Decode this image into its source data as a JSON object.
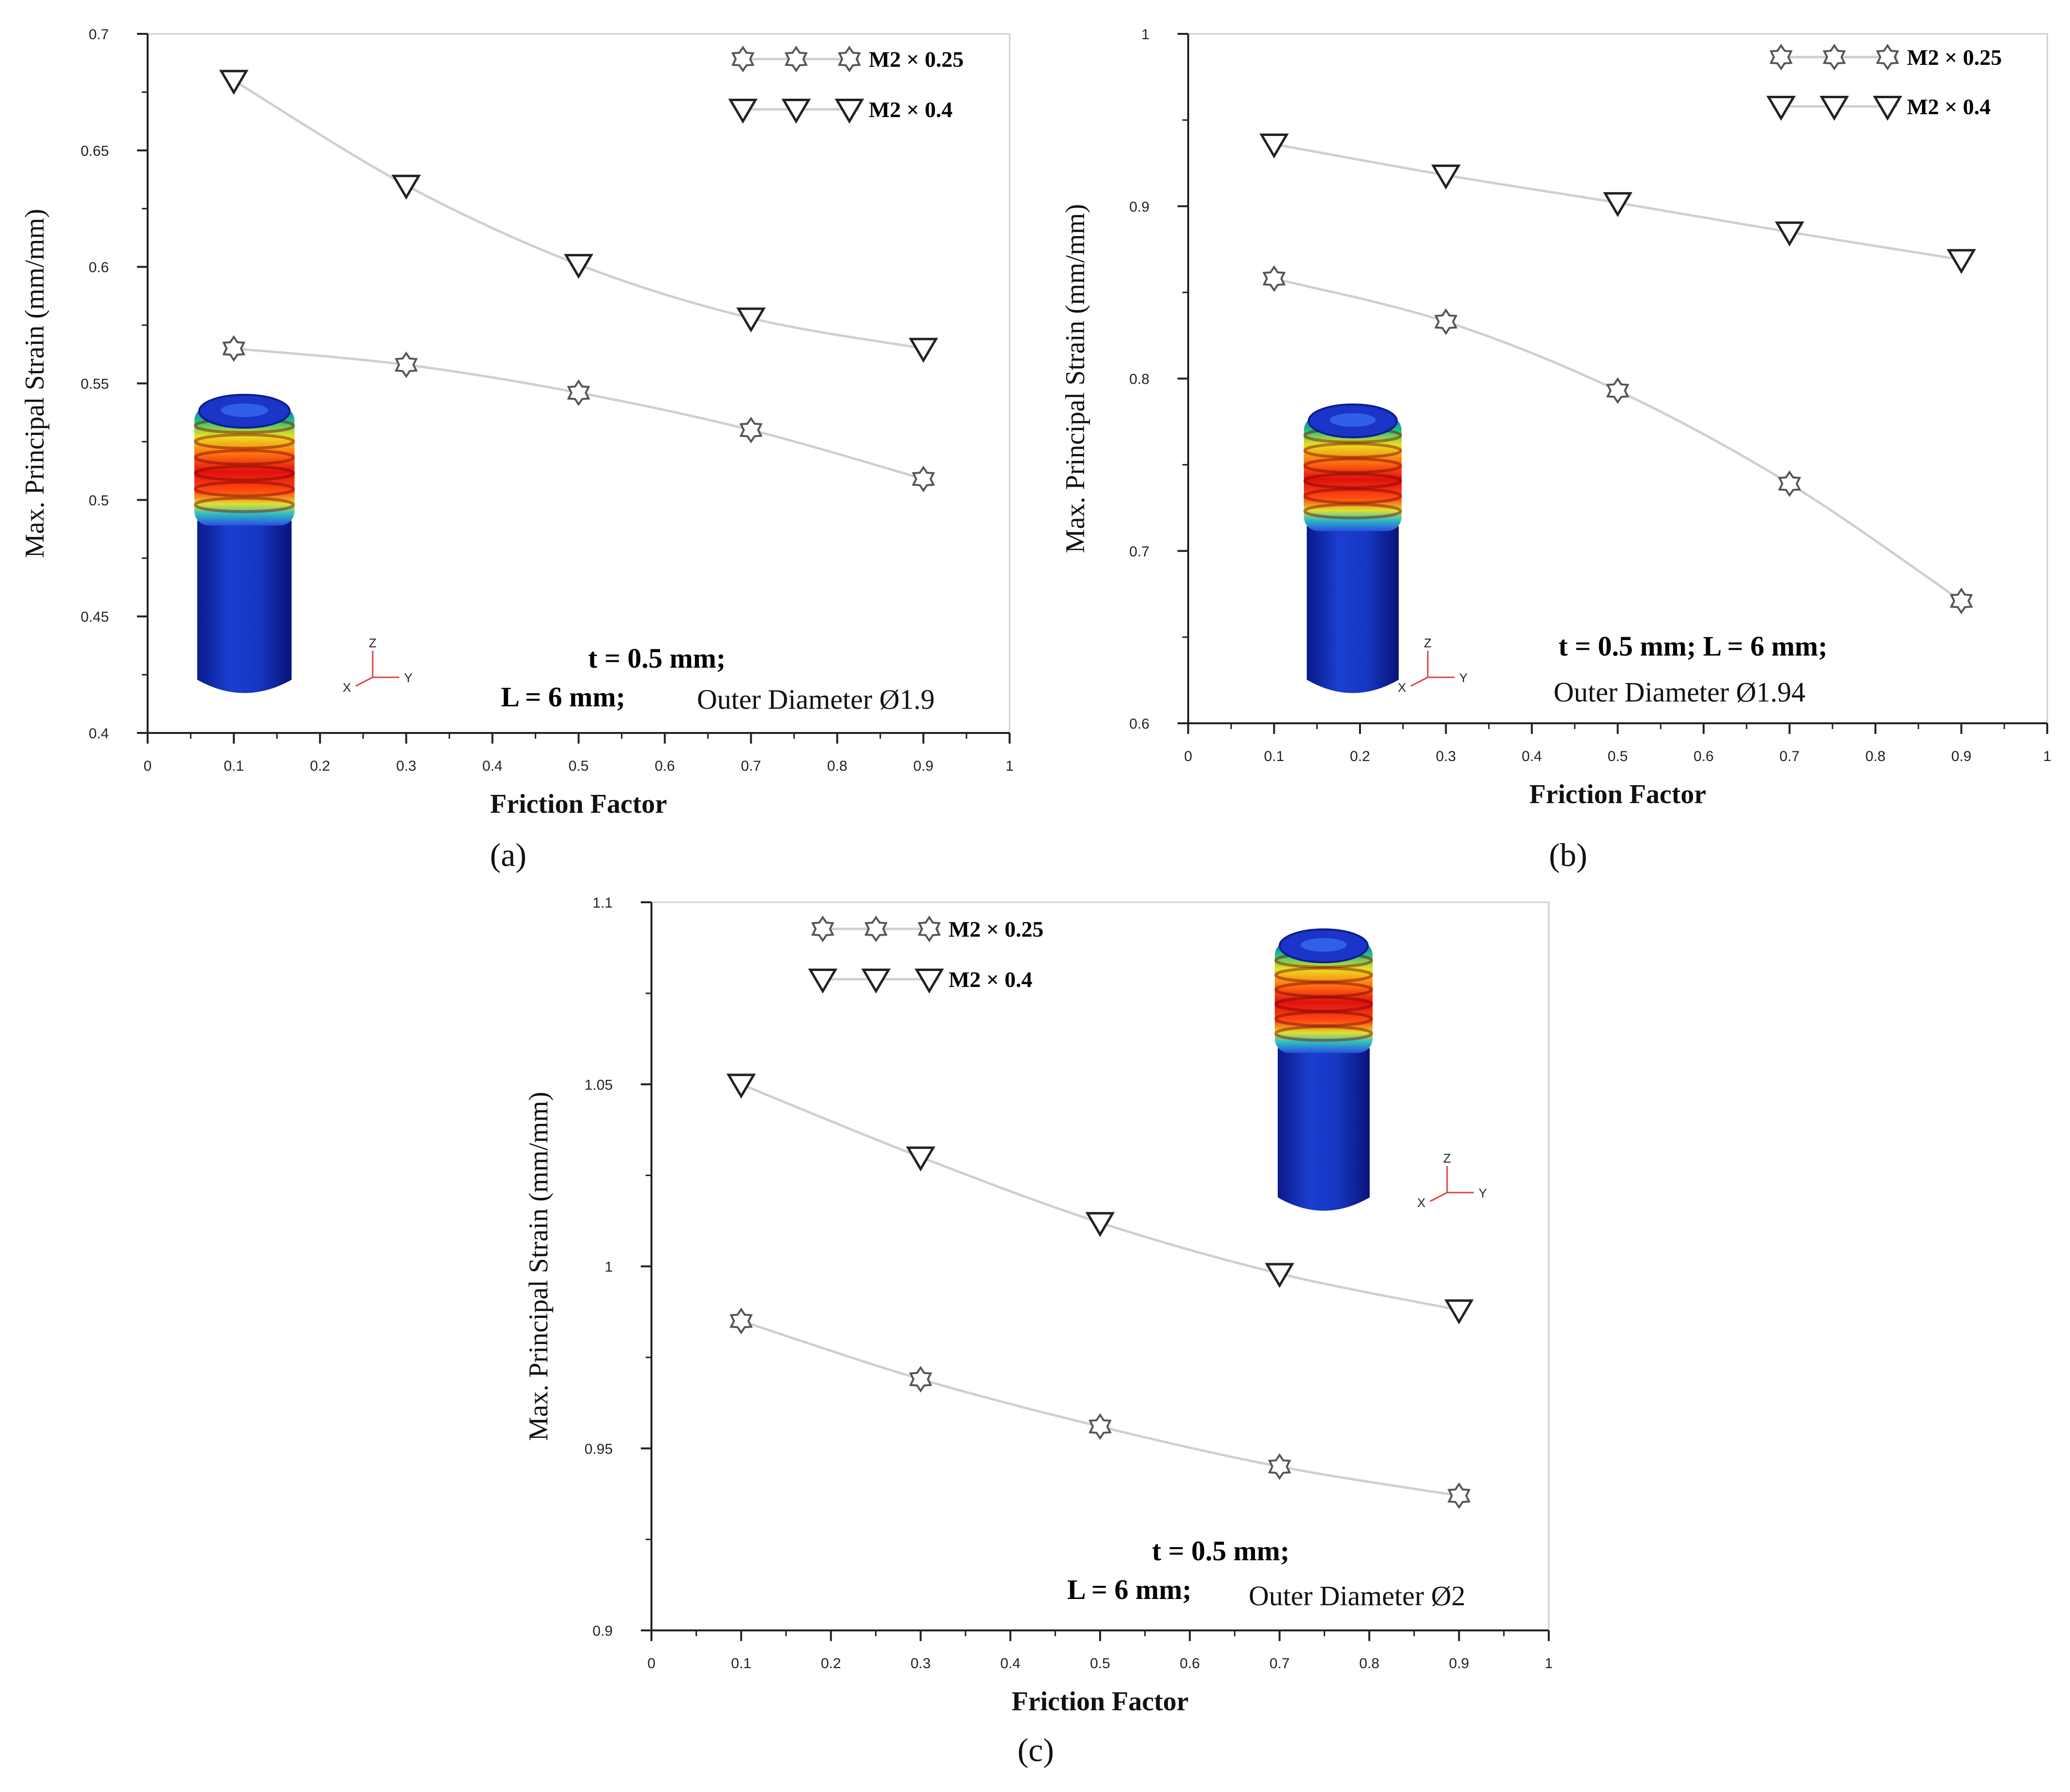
{
  "chart_data": [
    {
      "type": "line",
      "panel_label": "(a)",
      "xlabel": "Friction Factor",
      "ylabel": "Max. Principal Strain (mm/mm)",
      "xlim": [
        0,
        1
      ],
      "ylim": [
        0.4,
        0.7
      ],
      "xticks": [
        "0",
        "0.1",
        "0.2",
        "0.3",
        "0.4",
        "0.5",
        "0.6",
        "0.7",
        "0.8",
        "0.9",
        "1"
      ],
      "yticks": [
        "0.4",
        "0.45",
        "0.5",
        "0.55",
        "0.6",
        "0.65",
        "0.7"
      ],
      "x": [
        0.1,
        0.3,
        0.5,
        0.7,
        0.9
      ],
      "series": [
        {
          "name": "M2 × 0.25",
          "marker": "star",
          "values": [
            0.565,
            0.558,
            0.546,
            0.53,
            0.509
          ]
        },
        {
          "name": "M2 × 0.4",
          "marker": "triangle-down",
          "values": [
            0.68,
            0.635,
            0.601,
            0.578,
            0.565
          ]
        }
      ],
      "annotations": {
        "line1": "t = 0.5 mm;",
        "line2": "L = 6 mm;",
        "diameter": "Outer Diameter Ø1.9"
      },
      "axis_triad": {
        "z": "Z",
        "x": "X",
        "y": "Y"
      }
    },
    {
      "type": "line",
      "panel_label": "(b)",
      "xlabel": "Friction Factor",
      "ylabel": "Max. Principal Strain (mm/mm)",
      "xlim": [
        0,
        1
      ],
      "ylim": [
        0.6,
        1.0
      ],
      "xticks": [
        "0",
        "0.1",
        "0.2",
        "0.3",
        "0.4",
        "0.5",
        "0.6",
        "0.7",
        "0.8",
        "0.9",
        "1"
      ],
      "yticks": [
        "0.6",
        "0.7",
        "0.8",
        "0.9",
        "1"
      ],
      "x": [
        0.1,
        0.3,
        0.5,
        0.7,
        0.9
      ],
      "series": [
        {
          "name": "M2 × 0.25",
          "marker": "star",
          "values": [
            0.858,
            0.833,
            0.793,
            0.739,
            0.671
          ]
        },
        {
          "name": "M2 × 0.4",
          "marker": "triangle-down",
          "values": [
            0.936,
            0.918,
            0.902,
            0.885,
            0.869
          ]
        }
      ],
      "annotations": {
        "line1": "t = 0.5 mm; L = 6 mm;",
        "line2": "",
        "diameter": "Outer Diameter Ø1.94"
      },
      "axis_triad": {
        "z": "Z",
        "x": "X",
        "y": "Y"
      }
    },
    {
      "type": "line",
      "panel_label": "(c)",
      "xlabel": "Friction Factor",
      "ylabel": "Max. Principal Strain (mm/mm)",
      "xlim": [
        0,
        1
      ],
      "ylim": [
        0.9,
        1.1
      ],
      "xticks": [
        "0",
        "0.1",
        "0.2",
        "0.3",
        "0.4",
        "0.5",
        "0.6",
        "0.7",
        "0.8",
        "0.9",
        "1"
      ],
      "yticks": [
        "0.9",
        "0.95",
        "1",
        "1.05",
        "1.1"
      ],
      "x": [
        0.1,
        0.3,
        0.5,
        0.7,
        0.9
      ],
      "series": [
        {
          "name": "M2 × 0.25",
          "marker": "star",
          "values": [
            0.985,
            0.969,
            0.956,
            0.945,
            0.937
          ]
        },
        {
          "name": "M2 × 0.4",
          "marker": "triangle-down",
          "values": [
            1.05,
            1.03,
            1.012,
            0.998,
            0.988
          ]
        }
      ],
      "annotations": {
        "line1": "t = 0.5 mm;",
        "line2": "L = 6 mm;",
        "diameter": "Outer Diameter Ø2"
      },
      "axis_triad": {
        "z": "Z",
        "x": "X",
        "y": "Y"
      }
    }
  ]
}
